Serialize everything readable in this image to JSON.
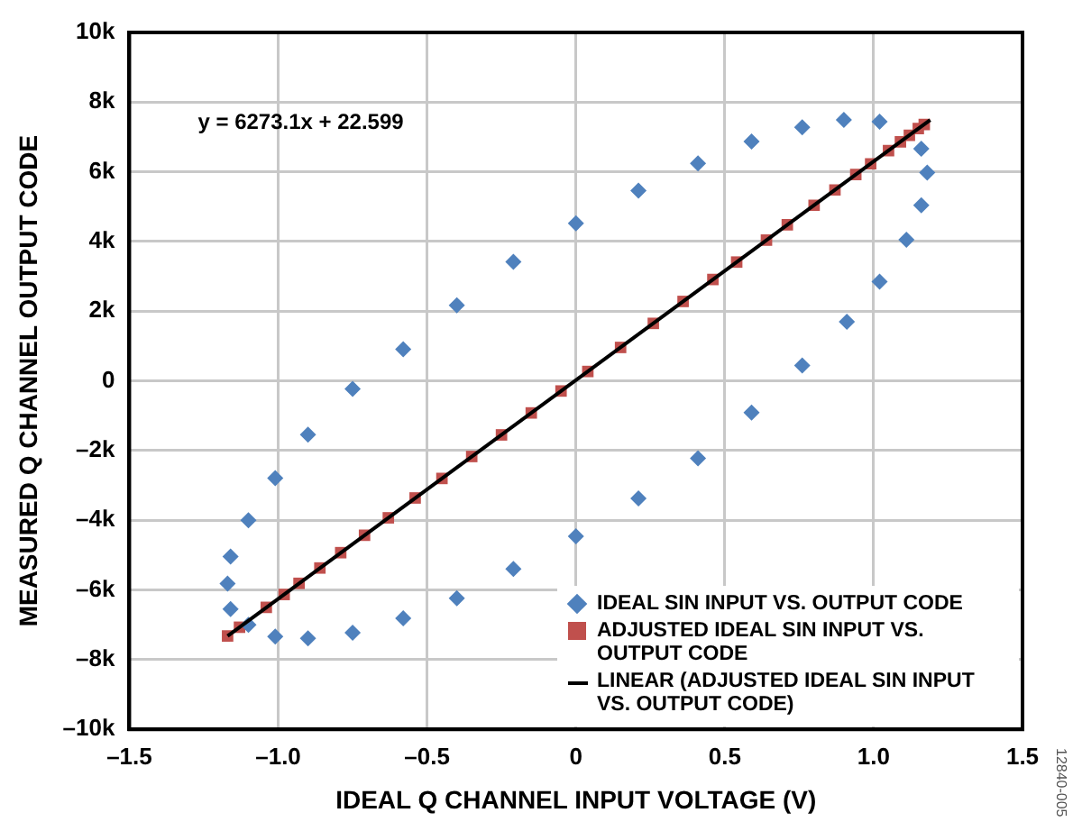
{
  "chart_data": {
    "type": "scatter",
    "xlabel": "IDEAL Q CHANNEL INPUT VOLTAGE (V)",
    "ylabel": "MEASURED Q CHANNEL OUTPUT CODE",
    "annotations": [
      "y = 6273.1x + 22.599",
      "12840-005"
    ],
    "xlim": [
      -1.5,
      1.5
    ],
    "xticks": [
      {
        "value": -1.5,
        "label": "–1.5"
      },
      {
        "value": -1,
        "label": "–1.0"
      },
      {
        "value": -0.5,
        "label": "–0.5"
      },
      0,
      0.5,
      {
        "value": 1,
        "label": "1.0"
      },
      1.5
    ],
    "ylim": [
      -10000,
      10000
    ],
    "yticks": [
      {
        "value": -10000,
        "label": "–10k"
      },
      {
        "value": -8000,
        "label": "–8k"
      },
      {
        "value": -6000,
        "label": "–6k"
      },
      {
        "value": -4000,
        "label": "–4k"
      },
      {
        "value": -2000,
        "label": "–2k"
      },
      0,
      {
        "value": 2000,
        "label": "2k"
      },
      {
        "value": 4000,
        "label": "4k"
      },
      {
        "value": 6000,
        "label": "6k"
      },
      {
        "value": 8000,
        "label": "8k"
      },
      {
        "value": 10000,
        "label": "10k"
      }
    ],
    "grid": true,
    "legend": "bottom right",
    "series": [
      {
        "name": "IDEAL SIN INPUT VS. OUTPUT CODE",
        "marker": "diamond",
        "color": "#4f81bd",
        "x": [
          -1.1,
          -1.16,
          -1.17,
          -1.16,
          -1.1,
          -1.01,
          -0.9,
          -0.75,
          -0.58,
          -0.4,
          -0.21,
          0,
          0.21,
          0.41,
          0.59,
          0.76,
          0.9,
          1.02,
          1.16,
          1.18,
          1.16,
          1.11,
          1.02,
          0.91,
          0.76,
          0.59,
          0.41,
          0.21,
          0,
          -0.21,
          -0.4,
          -0.58,
          -0.75,
          -0.9,
          -1.01
        ],
        "values": [
          -7000,
          -6550,
          -5820,
          -5040,
          -4000,
          -2790,
          -1540,
          -230,
          910,
          2170,
          3420,
          4520,
          5460,
          6240,
          6870,
          7280,
          7490,
          7440,
          6660,
          5980,
          5040,
          4050,
          2850,
          1700,
          440,
          -910,
          -2220,
          -3370,
          -4460,
          -5400,
          -6240,
          -6810,
          -7230,
          -7390,
          -7340
        ]
      },
      {
        "name": "ADJUSTED IDEAL SIN INPUT VS. OUTPUT CODE",
        "marker": "square",
        "color": "#c0504d",
        "x": [
          -1.17,
          -1.13,
          -1.09,
          -1.04,
          -0.98,
          -0.93,
          -0.86,
          -0.79,
          -0.71,
          -0.63,
          -0.54,
          -0.45,
          -0.35,
          -0.25,
          -0.15,
          -0.05,
          0.04,
          0.15,
          0.26,
          0.36,
          0.46,
          0.54,
          0.64,
          0.71,
          0.8,
          0.87,
          0.94,
          0.99,
          1.05,
          1.09,
          1.12,
          1.15,
          1.17
        ],
        "values": [
          -7320,
          -7070,
          null,
          -6500,
          -6130,
          -5810,
          -5370,
          -4930,
          -4430,
          -3930,
          -3360,
          -2800,
          -2170,
          -1550,
          -920,
          -290,
          270,
          960,
          1650,
          2280,
          2910,
          3410,
          4040,
          4480,
          5040,
          5480,
          5920,
          6230,
          6610,
          6860,
          7050,
          7240,
          7360
        ]
      },
      {
        "name": "LINEAR (ADJUSTED IDEAL SIN INPUT VS. OUTPUT CODE)",
        "type": "line",
        "marker": "none",
        "line_style": "solid",
        "color": "#000000",
        "x": [
          -1.17,
          1.19
        ],
        "values": [
          -7320,
          7490
        ]
      }
    ]
  }
}
